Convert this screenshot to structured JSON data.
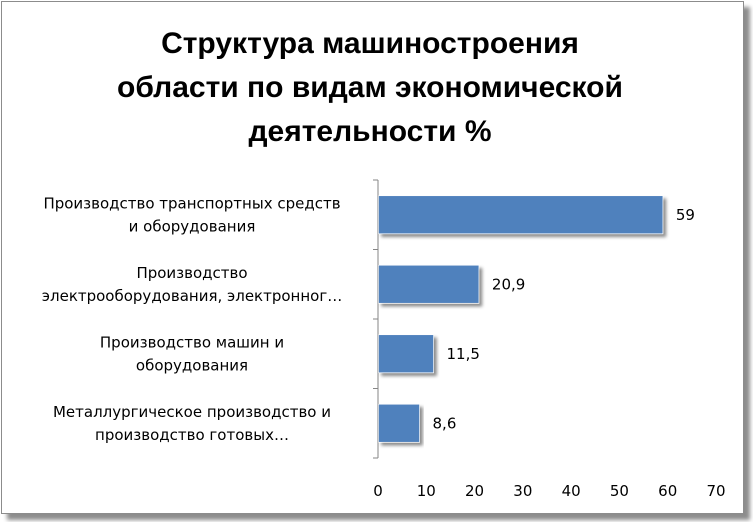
{
  "chart_data": {
    "type": "bar",
    "orientation": "horizontal",
    "title": "Структура машиностроения области по видам экономической деятельности %",
    "title_lines": [
      "Структура машиностроения",
      "области по видам экономической",
      "деятельности %"
    ],
    "categories": [
      [
        "Производство транспортных средств",
        "и оборудования"
      ],
      [
        "Производство",
        "электрооборудования, электронног…"
      ],
      [
        "Производство машин и",
        "оборудования"
      ],
      [
        "Металлургическое производство и",
        "производство готовых…"
      ]
    ],
    "values": [
      59,
      20.9,
      11.5,
      8.6
    ],
    "value_labels": [
      "59",
      "20,9",
      "11,5",
      "8,6"
    ],
    "xlim": [
      0,
      70
    ],
    "xticks": [
      0,
      10,
      20,
      30,
      40,
      50,
      60,
      70
    ],
    "xlabel": "",
    "ylabel": "",
    "bar_color": "#4f81bd",
    "grid": false,
    "legend": "none"
  }
}
